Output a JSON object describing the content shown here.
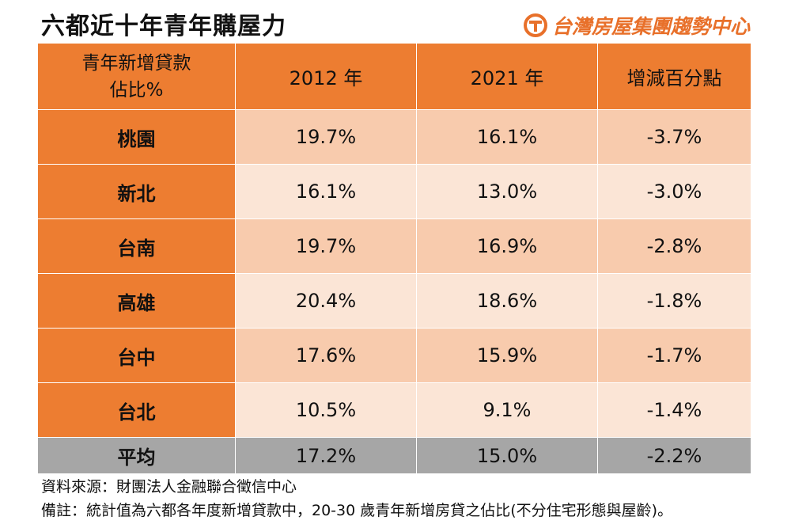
{
  "title": "六都近十年青年購屋力",
  "brand": {
    "name": "台灣房屋集團趨勢中心",
    "accent": "#e8702a"
  },
  "chart_data": {
    "type": "table",
    "header_label_line1": "青年新增貸款",
    "header_label_line2": "佔比%",
    "columns": [
      "2012 年",
      "2021 年",
      "增減百分點"
    ],
    "rows": [
      {
        "city": "桃園",
        "v2012": "19.7%",
        "v2021": "16.1%",
        "change": "-3.7%"
      },
      {
        "city": "新北",
        "v2012": "16.1%",
        "v2021": "13.0%",
        "change": "-3.0%"
      },
      {
        "city": "台南",
        "v2012": "19.7%",
        "v2021": "16.9%",
        "change": "-2.8%"
      },
      {
        "city": "高雄",
        "v2012": "20.4%",
        "v2021": "18.6%",
        "change": "-1.8%"
      },
      {
        "city": "台中",
        "v2012": "17.6%",
        "v2021": "15.9%",
        "change": "-1.7%"
      },
      {
        "city": "台北",
        "v2012": "10.5%",
        "v2021": "9.1%",
        "change": "-1.4%"
      }
    ],
    "average": {
      "city": "平均",
      "v2012": "17.2%",
      "v2021": "15.0%",
      "change": "-2.2%"
    }
  },
  "notes": {
    "source": "資料來源：財團法人金融聯合徵信中心",
    "remark": "備註：統計值為六都各年度新增貸款中，20-30 歲青年新增房貸之佔比(不分住宅形態與屋齡)。"
  },
  "colors": {
    "header": "#ed7d31",
    "row_dark": "#f8cbad",
    "row_light": "#fbe5d6",
    "average": "#a6a6a6"
  }
}
